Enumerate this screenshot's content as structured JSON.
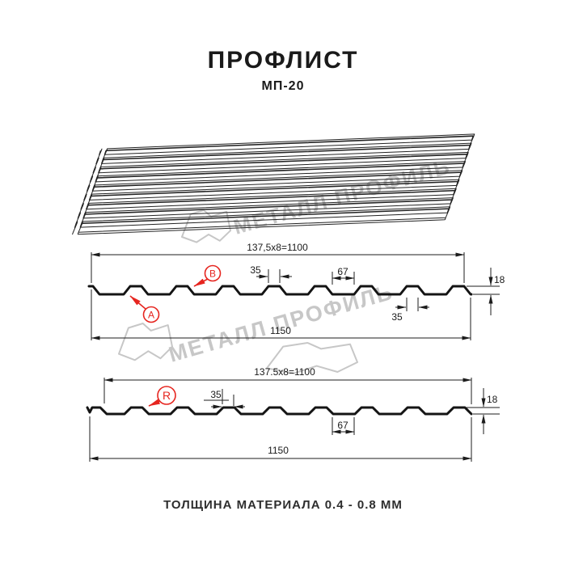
{
  "header": {
    "title": "ПРОФЛИСТ",
    "subtitle": "МП-20"
  },
  "watermark": {
    "brand": "МЕТАЛЛ ПРОФИЛЬ"
  },
  "diagram_top": {
    "label_a": "A",
    "label_b": "B",
    "dim_working_width": "137,5x8=1100",
    "dim_rib_top": "35",
    "dim_flat": "67",
    "dim_rib_bottom": "35",
    "dim_height": "18",
    "dim_overall": "1150"
  },
  "diagram_bottom": {
    "label_r": "R",
    "dim_working_width": "137.5x8=1100",
    "dim_rib_top": "35",
    "dim_flat": "67",
    "dim_height": "18",
    "dim_overall": "1150"
  },
  "footer": {
    "text": "ТОЛЩИНА МАТЕРИАЛА 0.4 - 0.8 ММ"
  },
  "colors": {
    "line": "#1c1c1c",
    "accent_red": "#e6251f",
    "watermark": "#c7c7c7"
  }
}
